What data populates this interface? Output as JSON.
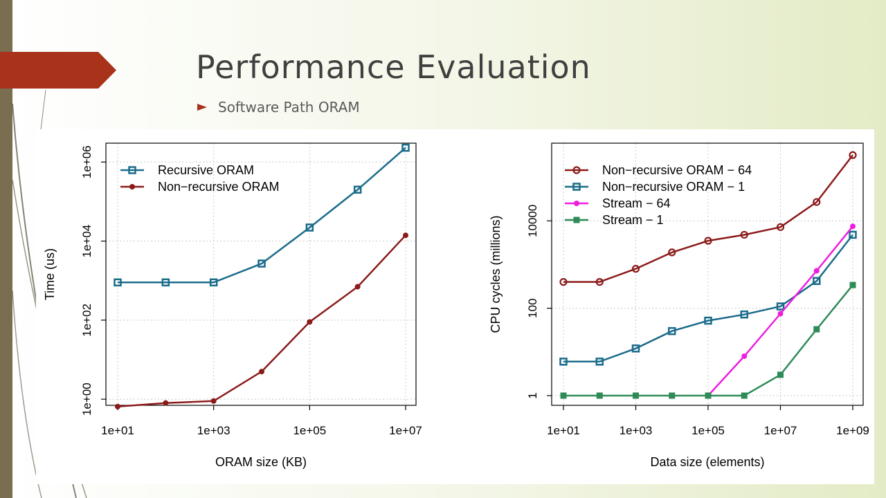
{
  "slide": {
    "title": "Performance Evaluation",
    "bullets": [
      {
        "text": "Software Path ORAM",
        "icon": "arrow-bullet-icon"
      }
    ],
    "accent_color": "#a8321a"
  },
  "chart_data": [
    {
      "type": "line",
      "title": "",
      "xlabel": "ORAM size (KB)",
      "ylabel": "Time (us)",
      "x_scale": "log",
      "y_scale": "log",
      "xlim": [
        10,
        10000000
      ],
      "ylim": [
        0.7,
        3000000
      ],
      "grid": true,
      "legend_position": "top-left",
      "x_ticks": [
        {
          "value": 10,
          "label": "1e+01"
        },
        {
          "value": 1000,
          "label": "1e+03"
        },
        {
          "value": 100000,
          "label": "1e+05"
        },
        {
          "value": 10000000,
          "label": "1e+07"
        }
      ],
      "y_ticks": [
        {
          "value": 1,
          "label": "1e+00"
        },
        {
          "value": 100,
          "label": "1e+02"
        },
        {
          "value": 10000,
          "label": "1e+04"
        },
        {
          "value": 1000000,
          "label": "1e+06"
        }
      ],
      "x": [
        10,
        100,
        1000,
        10000,
        100000,
        1000000,
        10000000
      ],
      "series": [
        {
          "name": "Recursive ORAM",
          "color": "#1a6b8a",
          "marker": "open-square",
          "values": [
            900,
            900,
            900,
            2700,
            22000,
            200000,
            2300000
          ]
        },
        {
          "name": "Non−recursive ORAM",
          "color": "#8b1a1a",
          "marker": "filled-circle",
          "values": [
            0.65,
            0.8,
            0.9,
            5,
            90,
            700,
            14000
          ]
        }
      ]
    },
    {
      "type": "line",
      "title": "",
      "xlabel": "Data size (elements)",
      "ylabel": "CPU cycles (millions)",
      "x_scale": "log",
      "y_scale": "log",
      "xlim": [
        10,
        1000000000
      ],
      "ylim": [
        0.6,
        600000
      ],
      "grid": true,
      "legend_position": "top-left",
      "x_ticks": [
        {
          "value": 10,
          "label": "1e+01"
        },
        {
          "value": 1000,
          "label": "1e+03"
        },
        {
          "value": 100000,
          "label": "1e+05"
        },
        {
          "value": 10000000,
          "label": "1e+07"
        },
        {
          "value": 1000000000,
          "label": "1e+09"
        }
      ],
      "y_ticks": [
        {
          "value": 1,
          "label": "1"
        },
        {
          "value": 100,
          "label": "100"
        },
        {
          "value": 10000,
          "label": "10000"
        }
      ],
      "x": [
        10,
        100,
        1000,
        10000,
        100000,
        1000000,
        10000000,
        100000000,
        1000000000
      ],
      "series": [
        {
          "name": "Non−recursive ORAM − 64",
          "color": "#8b1a1a",
          "marker": "open-circle",
          "values": [
            400,
            400,
            800,
            1900,
            3500,
            4800,
            7200,
            27000,
            320000
          ]
        },
        {
          "name": "Non−recursive ORAM − 1",
          "color": "#1a6b8a",
          "marker": "open-square",
          "values": [
            6,
            6,
            12,
            30,
            52,
            72,
            110,
            420,
            4800
          ]
        },
        {
          "name": "Stream − 64",
          "color": "#ee1ee0",
          "marker": "filled-circle",
          "values": [
            null,
            null,
            null,
            null,
            1,
            8,
            75,
            720,
            7500
          ]
        },
        {
          "name": "Stream − 1",
          "color": "#2e8b57",
          "marker": "filled-square",
          "values": [
            1,
            1,
            1,
            1,
            1,
            1,
            3,
            33,
            340
          ]
        }
      ]
    }
  ]
}
